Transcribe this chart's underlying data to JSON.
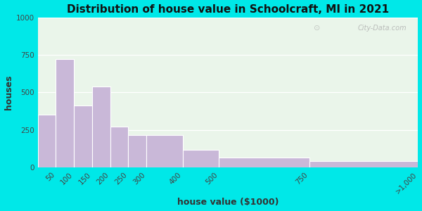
{
  "title": "Distribution of house value in Schoolcraft, MI in 2021",
  "xlabel": "house value ($1000)",
  "ylabel": "houses",
  "bin_edges": [
    0,
    50,
    100,
    150,
    200,
    250,
    300,
    400,
    500,
    750,
    1050
  ],
  "tick_positions": [
    50,
    100,
    150,
    200,
    250,
    300,
    400,
    500,
    750,
    1050
  ],
  "tick_labels": [
    "50",
    "100",
    "150",
    "200",
    "250",
    "300",
    "400",
    "500",
    "750",
    ">1,000"
  ],
  "values": [
    350,
    720,
    415,
    540,
    275,
    215,
    215,
    120,
    65,
    45
  ],
  "bar_color": "#c9b8d8",
  "bar_edge_color": "#ffffff",
  "ylim": [
    0,
    1000
  ],
  "yticks": [
    0,
    250,
    500,
    750,
    1000
  ],
  "bg_outer": "#00e8e8",
  "bg_inner": "#eaf5ea",
  "title_fontsize": 11,
  "axis_label_fontsize": 9,
  "tick_fontsize": 7.5,
  "watermark": "City-Data.com"
}
